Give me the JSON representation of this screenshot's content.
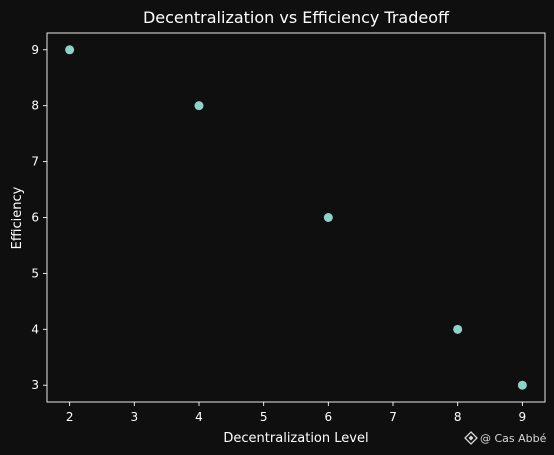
{
  "chart_data": {
    "type": "scatter",
    "title": "Decentralization vs Efficiency Tradeoff",
    "xlabel": "Decentralization Level",
    "ylabel": "Efficiency",
    "x": [
      2,
      4,
      6,
      8,
      9
    ],
    "y": [
      9,
      8,
      6,
      4,
      3
    ],
    "xlim": [
      1.65,
      9.35
    ],
    "ylim": [
      2.7,
      9.3
    ],
    "xticks": [
      2,
      3,
      4,
      5,
      6,
      7,
      8,
      9
    ],
    "yticks": [
      3,
      4,
      5,
      6,
      7,
      8,
      9
    ],
    "grid": false,
    "colors": {
      "background": "#0f0f0f",
      "axes": "#ffffff",
      "points": "#8dd3c7"
    }
  },
  "watermark": {
    "text": "@ Cas Abbé",
    "icon": "binance-diamond-icon"
  }
}
